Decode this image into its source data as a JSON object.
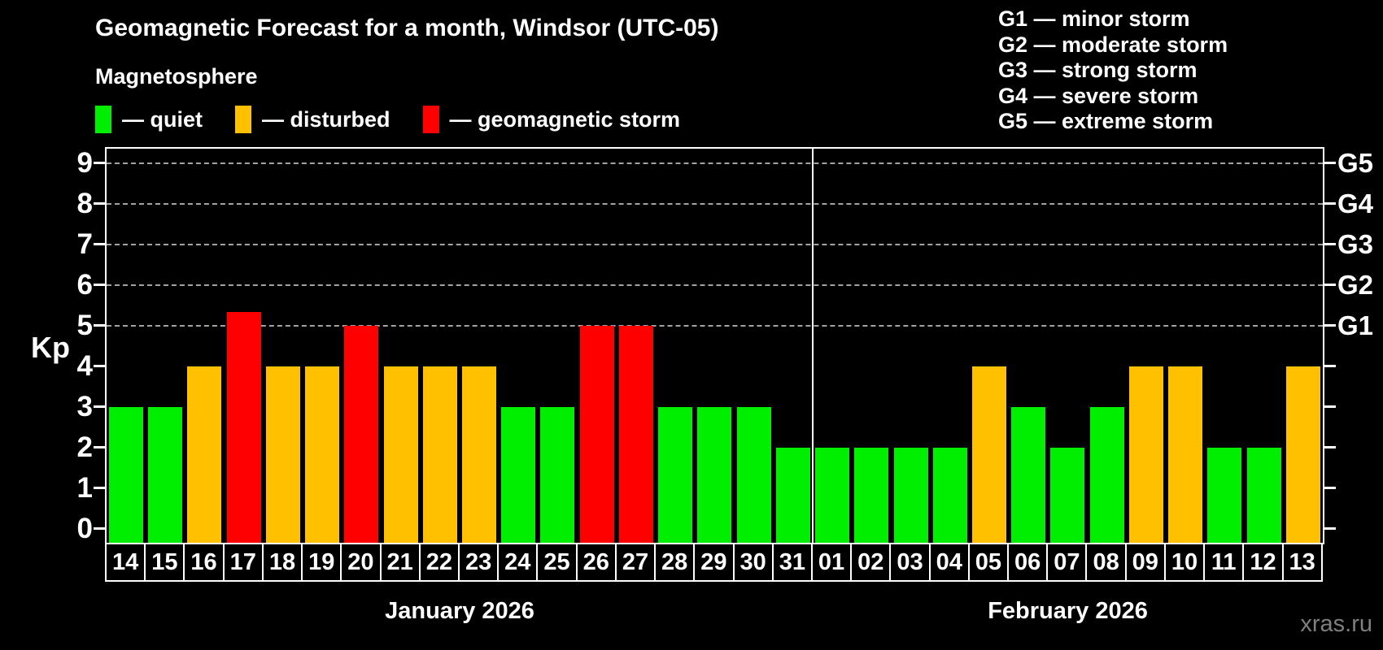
{
  "header": {
    "title": "Geomagnetic Forecast for a month, Windsor (UTC-05)",
    "subtitle": "Magnetosphere"
  },
  "legend": {
    "items": [
      {
        "key": "quiet",
        "label": "— quiet",
        "color": "#00ee00"
      },
      {
        "key": "disturbed",
        "label": "— disturbed",
        "color": "#ffc000"
      },
      {
        "key": "storm",
        "label": "— geomagnetic storm",
        "color": "#ff0000"
      }
    ]
  },
  "g_scale_legend": [
    "G1 — minor storm",
    "G2 — moderate storm",
    "G3 — strong storm",
    "G4 — severe storm",
    "G5 — extreme storm"
  ],
  "watermark": "xras.ru",
  "chart_data": {
    "type": "bar",
    "title": "Geomagnetic Forecast for a month, Windsor (UTC-05)",
    "ylabel": "Kp",
    "ylim": [
      -0.35,
      9.35
    ],
    "y_ticks": [
      0,
      1,
      2,
      3,
      4,
      5,
      6,
      7,
      8,
      9
    ],
    "gridlines_at": [
      5,
      6,
      7,
      8,
      9
    ],
    "grid_style": "dashed",
    "right_axis_labels": [
      {
        "label": "G5",
        "value": 9
      },
      {
        "label": "G4",
        "value": 8
      },
      {
        "label": "G3",
        "value": 7
      },
      {
        "label": "G2",
        "value": 6
      },
      {
        "label": "G1",
        "value": 5
      }
    ],
    "months": [
      {
        "label": "January 2026",
        "span_days": 18
      },
      {
        "label": "February 2026",
        "span_days": 13
      }
    ],
    "categories": [
      "14",
      "15",
      "16",
      "17",
      "18",
      "19",
      "20",
      "21",
      "22",
      "23",
      "24",
      "25",
      "26",
      "27",
      "28",
      "29",
      "30",
      "31",
      "01",
      "02",
      "03",
      "04",
      "05",
      "06",
      "07",
      "08",
      "09",
      "10",
      "11",
      "12",
      "13"
    ],
    "values": [
      3,
      3,
      4,
      5.33,
      4,
      4,
      5,
      4,
      4,
      4,
      3,
      3,
      5,
      5,
      3,
      3,
      3,
      2,
      2,
      2,
      2,
      2,
      4,
      3,
      2,
      3,
      4,
      4,
      2,
      2,
      4
    ],
    "statuses": [
      "quiet",
      "quiet",
      "disturbed",
      "storm",
      "disturbed",
      "disturbed",
      "storm",
      "disturbed",
      "disturbed",
      "disturbed",
      "quiet",
      "quiet",
      "storm",
      "storm",
      "quiet",
      "quiet",
      "quiet",
      "quiet",
      "quiet",
      "quiet",
      "quiet",
      "quiet",
      "disturbed",
      "quiet",
      "quiet",
      "quiet",
      "disturbed",
      "disturbed",
      "quiet",
      "quiet",
      "disturbed"
    ],
    "status_colors": {
      "quiet": "#00ee00",
      "disturbed": "#ffc000",
      "storm": "#ff0000"
    },
    "legend_position": "top-left",
    "grid_on": true
  }
}
